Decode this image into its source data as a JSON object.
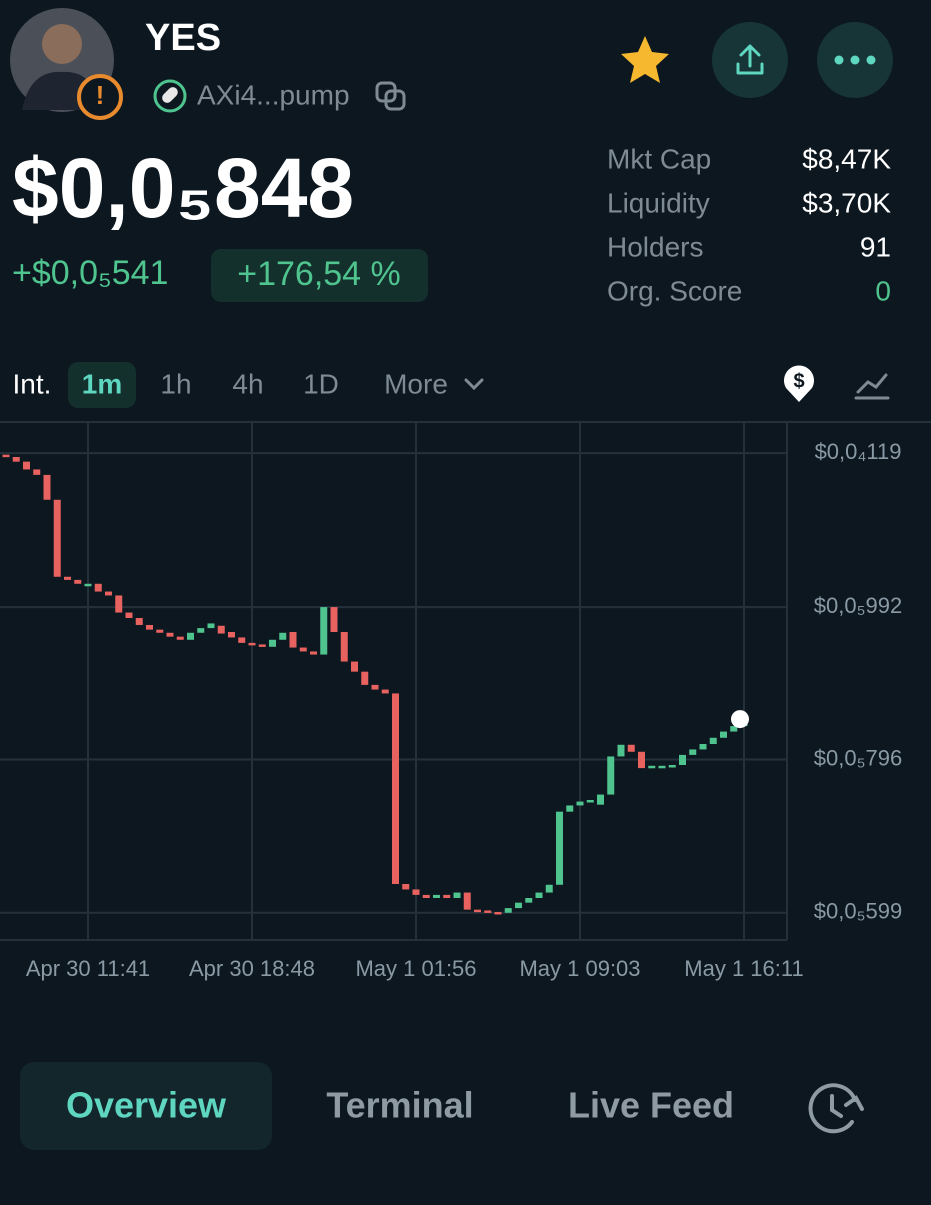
{
  "header": {
    "name": "YES",
    "address": "AXi4...pump"
  },
  "price": {
    "current": "$0,0₅848",
    "change": "+$0,0₅541",
    "change_percent": "+176,54 %"
  },
  "stats": [
    {
      "label": "Mkt Cap",
      "value": "$8,47K"
    },
    {
      "label": "Liquidity",
      "value": "$3,70K"
    },
    {
      "label": "Holders",
      "value": "91"
    },
    {
      "label": "Org. Score",
      "value": "0"
    }
  ],
  "intervals": [
    "Int.",
    "1m",
    "1h",
    "4h",
    "1D",
    "More"
  ],
  "tabs": [
    "Overview",
    "Terminal",
    "Live Feed"
  ],
  "chart_data": {
    "type": "candlestick",
    "categories": [
      null,
      null,
      null,
      null,
      null,
      null,
      null,
      null,
      "Apr 30 11:41",
      null,
      null,
      null,
      null,
      null,
      null,
      null,
      null,
      null,
      null,
      null,
      null,
      null,
      null,
      null,
      "Apr 30 18:48",
      null,
      null,
      null,
      null,
      null,
      null,
      null,
      null,
      null,
      null,
      null,
      null,
      null,
      null,
      null,
      "May 1 01:56",
      null,
      null,
      null,
      null,
      null,
      null,
      null,
      null,
      null,
      null,
      null,
      null,
      null,
      null,
      null,
      "May 1 09:03",
      null,
      null,
      null,
      null,
      null,
      null,
      null,
      null,
      null,
      null,
      null,
      null,
      null,
      null,
      null,
      "May 1 16:11"
    ],
    "open": [
      1.188e-05,
      1.185e-05,
      1.179e-05,
      1.169e-05,
      1.162e-05,
      1.13e-05,
      1.031e-05,
      1.027e-05,
      1.019e-05,
      1.022e-05,
      1.012e-05,
      1.007e-05,
      9.85e-06,
      9.78e-06,
      9.69e-06,
      9.63e-06,
      9.59e-06,
      9.54e-06,
      9.5e-06,
      9.59e-06,
      9.65e-06,
      9.68e-06,
      9.6e-06,
      9.53e-06,
      9.46e-06,
      9.44e-06,
      9.41e-06,
      9.5e-06,
      9.6e-06,
      9.4e-06,
      9.35e-06,
      9.31e-06,
      9.92e-06,
      9.6e-06,
      9.22e-06,
      9.09e-06,
      8.92e-06,
      8.86e-06,
      8.81e-06,
      6.36e-06,
      6.29e-06,
      6.22e-06,
      6.18e-06,
      6.22e-06,
      6.18e-06,
      6.25e-06,
      6.03e-06,
      6.02e-06,
      6e-06,
      5.99e-06,
      6.05e-06,
      6.12e-06,
      6.18e-06,
      6.25e-06,
      6.35e-06,
      7.29e-06,
      7.37e-06,
      7.42e-06,
      7.38e-06,
      7.51e-06,
      8e-06,
      8.15e-06,
      8.06e-06,
      7.85e-06,
      7.87e-06,
      7.88e-06,
      7.89e-06,
      8.02e-06,
      8.09e-06,
      8.16e-06,
      8.24e-06,
      8.32e-06,
      8.39e-06
    ],
    "close": [
      1.185e-05,
      1.179e-05,
      1.169e-05,
      1.162e-05,
      1.13e-05,
      1.031e-05,
      1.027e-05,
      1.022e-05,
      1.022e-05,
      1.012e-05,
      1.007e-05,
      9.85e-06,
      9.78e-06,
      9.69e-06,
      9.63e-06,
      9.59e-06,
      9.54e-06,
      9.5e-06,
      9.59e-06,
      9.65e-06,
      9.71e-06,
      9.58e-06,
      9.53e-06,
      9.46e-06,
      9.44e-06,
      9.41e-06,
      9.5e-06,
      9.59e-06,
      9.4e-06,
      9.35e-06,
      9.31e-06,
      9.92e-06,
      9.6e-06,
      9.22e-06,
      9.09e-06,
      8.92e-06,
      8.86e-06,
      8.81e-06,
      6.36e-06,
      6.29e-06,
      6.22e-06,
      6.18e-06,
      6.22e-06,
      6.18e-06,
      6.25e-06,
      6.03e-06,
      6.02e-06,
      6e-06,
      5.99e-06,
      6.05e-06,
      6.12e-06,
      6.18e-06,
      6.25e-06,
      6.35e-06,
      7.29e-06,
      7.37e-06,
      7.42e-06,
      7.44e-06,
      7.51e-06,
      8e-06,
      8.15e-06,
      8.06e-06,
      7.85e-06,
      7.88e-06,
      7.88e-06,
      7.89e-06,
      8.02e-06,
      8.09e-06,
      8.16e-06,
      8.24e-06,
      8.32e-06,
      8.39e-06,
      8.48e-06
    ],
    "up_color": "#4fc48e",
    "down_color": "#e8625f",
    "ylim": [
      5.64e-06,
      1.23e-05
    ],
    "yticks": [
      {
        "value": 1.19e-05,
        "label": "$0,0₄119"
      },
      {
        "value": 9.92e-06,
        "label": "$0,0₅992"
      },
      {
        "value": 7.96e-06,
        "label": "$0,0₅796"
      },
      {
        "value": 5.99e-06,
        "label": "$0,0₅599"
      }
    ],
    "grid": true
  }
}
